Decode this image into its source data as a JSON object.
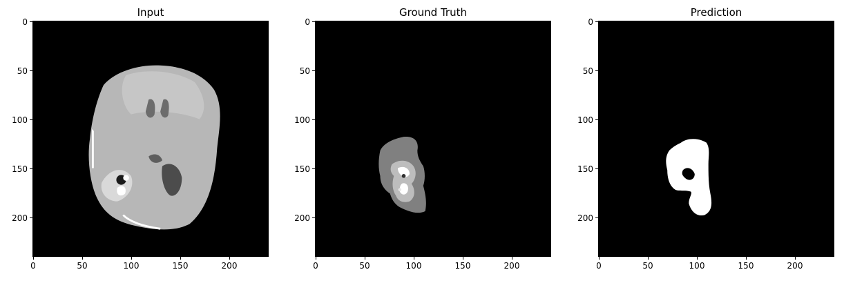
{
  "figure": {
    "panels": [
      {
        "title": "Input",
        "kind": "mri-slice"
      },
      {
        "title": "Ground Truth",
        "kind": "segmentation-multiclass"
      },
      {
        "title": "Prediction",
        "kind": "segmentation-binary"
      }
    ],
    "axis": {
      "y_ticks": [
        "0",
        "50",
        "100",
        "150",
        "200"
      ],
      "x_ticks": [
        "0",
        "50",
        "100",
        "150",
        "200"
      ],
      "range": [
        0,
        240
      ]
    },
    "colors": {
      "background": "#000000",
      "brain_tissue": "#b4b4b4",
      "ventricle": "#4a4a4a",
      "edema": "#7f7f7f",
      "tumor_core": "#c8c8c8",
      "enhancing": "#ffffff",
      "prediction_mask": "#ffffff"
    }
  }
}
